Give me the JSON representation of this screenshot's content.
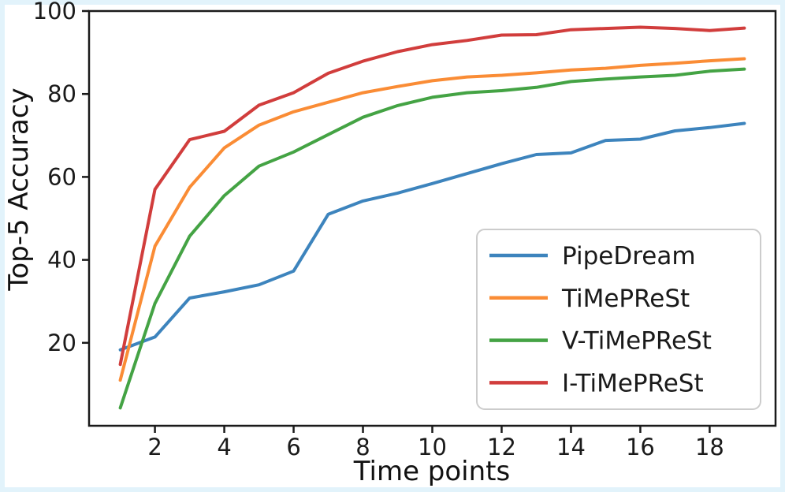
{
  "figure": {
    "background": "#ffffff",
    "frame_border_color": "#e2f3fb",
    "axis_color": "#1a1a1a",
    "text_color": "#1a1a1a",
    "legend_border_color": "#cccccc",
    "legend_background": "#ffffff"
  },
  "chart_data": {
    "type": "line",
    "title": "",
    "xlabel": "Time points",
    "ylabel": "Top-5 Accuracy",
    "x": [
      1,
      2,
      3,
      4,
      5,
      6,
      7,
      8,
      9,
      10,
      11,
      12,
      13,
      14,
      15,
      16,
      17,
      18,
      19
    ],
    "series": [
      {
        "name": "PipeDream",
        "color": "#3d84bd",
        "values": [
          18.3,
          21.4,
          30.8,
          32.3,
          34.0,
          37.3,
          51.0,
          54.2,
          56.1,
          58.4,
          60.8,
          63.2,
          65.4,
          65.8,
          68.8,
          69.1,
          71.1,
          71.9,
          72.9
        ]
      },
      {
        "name": "TiMePReSt",
        "color": "#fa8c35",
        "values": [
          11.0,
          43.3,
          57.5,
          67.0,
          72.5,
          75.7,
          78.0,
          80.3,
          81.8,
          83.2,
          84.1,
          84.5,
          85.1,
          85.8,
          86.2,
          86.9,
          87.4,
          88.0,
          88.5
        ]
      },
      {
        "name": "V-TiMePReSt",
        "color": "#44a344",
        "values": [
          4.3,
          29.5,
          45.7,
          55.5,
          62.6,
          66.0,
          70.2,
          74.4,
          77.2,
          79.2,
          80.3,
          80.8,
          81.6,
          83.0,
          83.6,
          84.1,
          84.5,
          85.5,
          86.0
        ]
      },
      {
        "name": "I-TiMePReSt",
        "color": "#d13d3c",
        "values": [
          14.8,
          57.0,
          69.0,
          71.0,
          77.3,
          80.3,
          85.0,
          87.9,
          90.2,
          91.9,
          92.9,
          94.2,
          94.3,
          95.5,
          95.8,
          96.1,
          95.8,
          95.3,
          95.9
        ]
      }
    ],
    "xlim": [
      0.1,
      19.9
    ],
    "ylim": [
      0,
      100
    ],
    "xticks": [
      2,
      4,
      6,
      8,
      10,
      12,
      14,
      16,
      18
    ],
    "yticks": [
      20,
      40,
      60,
      80,
      100
    ],
    "grid": false,
    "legend": {
      "position": "inside lower-right",
      "entries": [
        "PipeDream",
        "TiMePReSt",
        "V-TiMePReSt",
        "I-TiMePReSt"
      ]
    }
  }
}
